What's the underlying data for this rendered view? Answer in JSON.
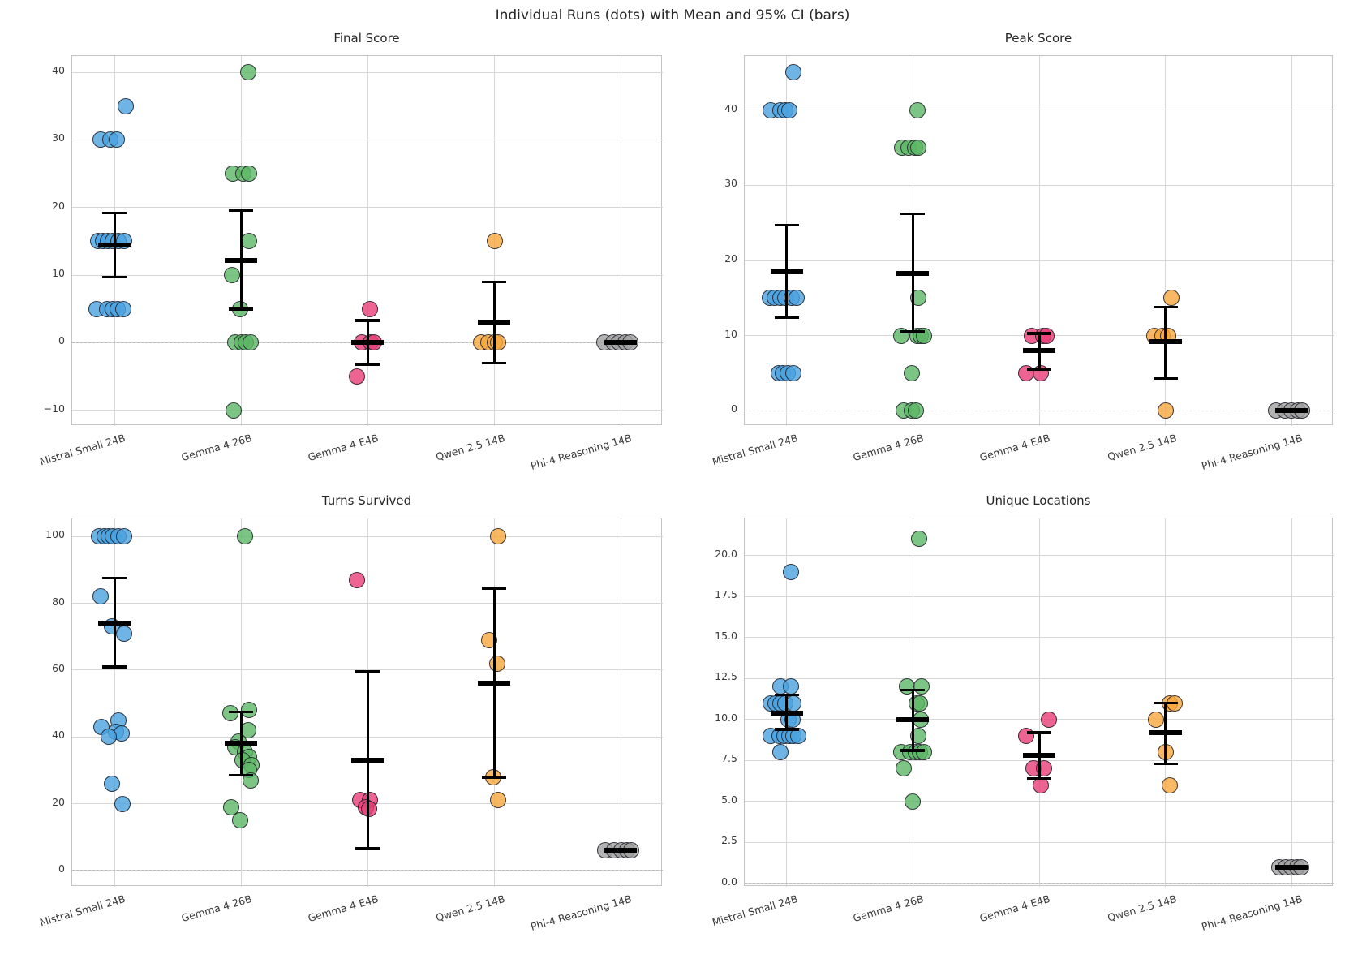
{
  "chart_data": {
    "type": "scatter",
    "suptitle": "Individual Runs (dots) with Mean and 95% CI (bars)",
    "categories": [
      "Mistral Small 24B",
      "Gemma 4 26B",
      "Gemma 4 E4B",
      "Qwen 2.5 14B",
      "Phi-4 Reasoning 14B"
    ],
    "palette": [
      "#4aa2e0",
      "#5cb765",
      "#e83d77",
      "#f7a63d",
      "#a0a0a0"
    ],
    "grid": true,
    "legend": "none",
    "subplots": [
      {
        "title": "Final Score",
        "ylim": [
          -12.3,
          42.4
        ],
        "yticks": [
          -10,
          0,
          10,
          20,
          30,
          40
        ],
        "ytick_labels": [
          "−10",
          "0",
          "10",
          "20",
          "30",
          "40"
        ],
        "zero_line": 0,
        "groups": [
          {
            "category": "Mistral Small 24B",
            "mean": 14.4,
            "ci": [
              9.7,
              19.2
            ],
            "points": [
              [
                35,
                0.09
              ],
              [
                30,
                -0.11
              ],
              [
                30,
                -0.03
              ],
              [
                30,
                0.02
              ],
              [
                15,
                -0.13
              ],
              [
                15,
                -0.09
              ],
              [
                15,
                -0.05
              ],
              [
                15,
                -0.01
              ],
              [
                15,
                0.035
              ],
              [
                15,
                0.08
              ],
              [
                5,
                -0.14
              ],
              [
                5,
                -0.055
              ],
              [
                5,
                -0.015
              ],
              [
                5,
                0.025
              ],
              [
                5,
                0.07
              ]
            ]
          },
          {
            "category": "Gemma 4 26B",
            "mean": 12.2,
            "ci": [
              5.0,
              19.6
            ],
            "points": [
              [
                40,
                0.06
              ],
              [
                25,
                -0.065
              ],
              [
                25,
                0.02
              ],
              [
                25,
                0.065
              ],
              [
                15,
                0.065
              ],
              [
                10,
                -0.07
              ],
              [
                5,
                -0.005
              ],
              [
                0,
                -0.045
              ],
              [
                0,
                0.005
              ],
              [
                0,
                0.04
              ],
              [
                0,
                0.075
              ],
              [
                -10,
                -0.06
              ]
            ]
          },
          {
            "category": "Gemma 4 E4B",
            "mean": 0.0,
            "ci": [
              -3.2,
              3.3
            ],
            "points": [
              [
                5,
                0.02
              ],
              [
                0,
                -0.045
              ],
              [
                0,
                0.025
              ],
              [
                0,
                0.05
              ],
              [
                -5,
                -0.085
              ]
            ]
          },
          {
            "category": "Qwen 2.5 14B",
            "mean": 3.0,
            "ci": [
              -3.0,
              9.0
            ],
            "points": [
              [
                15,
                0.005
              ],
              [
                0,
                -0.1
              ],
              [
                0,
                -0.045
              ],
              [
                0,
                0.005
              ],
              [
                0,
                0.03
              ]
            ]
          },
          {
            "category": "Phi-4 Reasoning 14B",
            "mean": 0.0,
            "ci": [
              0.0,
              0.0
            ],
            "points": [
              [
                0,
                -0.13
              ],
              [
                0,
                -0.06
              ],
              [
                0,
                -0.01
              ],
              [
                0,
                0.04
              ],
              [
                0,
                0.075
              ]
            ]
          }
        ]
      },
      {
        "title": "Peak Score",
        "ylim": [
          -2.0,
          47.2
        ],
        "yticks": [
          0,
          10,
          20,
          30,
          40
        ],
        "ytick_labels": [
          "0",
          "10",
          "20",
          "30",
          "40"
        ],
        "zero_line": 0,
        "groups": [
          {
            "category": "Mistral Small 24B",
            "mean": 18.5,
            "ci": [
              12.4,
              24.7
            ],
            "points": [
              [
                45,
                0.055
              ],
              [
                40,
                -0.125
              ],
              [
                40,
                -0.05
              ],
              [
                40,
                -0.015
              ],
              [
                40,
                0.02
              ],
              [
                15,
                -0.135
              ],
              [
                15,
                -0.095
              ],
              [
                15,
                -0.05
              ],
              [
                15,
                -0.01
              ],
              [
                15,
                0.04
              ],
              [
                15,
                0.075
              ],
              [
                5,
                -0.065
              ],
              [
                5,
                -0.03
              ],
              [
                5,
                0.01
              ],
              [
                5,
                0.055
              ]
            ]
          },
          {
            "category": "Gemma 4 26B",
            "mean": 18.3,
            "ci": [
              10.5,
              26.2
            ],
            "points": [
              [
                40,
                0.035
              ],
              [
                35,
                -0.085
              ],
              [
                35,
                -0.035
              ],
              [
                35,
                0.015
              ],
              [
                35,
                0.045
              ],
              [
                15,
                0.04
              ],
              [
                10,
                -0.095
              ],
              [
                10,
                0.035
              ],
              [
                10,
                0.06
              ],
              [
                10,
                0.085
              ],
              [
                5,
                -0.01
              ],
              [
                0,
                -0.075
              ],
              [
                0,
                -0.01
              ],
              [
                0,
                0.025
              ]
            ]
          },
          {
            "category": "Gemma 4 E4B",
            "mean": 8.0,
            "ci": [
              5.5,
              10.3
            ],
            "points": [
              [
                10,
                -0.06
              ],
              [
                10,
                0.03
              ],
              [
                10,
                0.055
              ],
              [
                5,
                -0.1
              ],
              [
                5,
                0.015
              ]
            ]
          },
          {
            "category": "Qwen 2.5 14B",
            "mean": 9.2,
            "ci": [
              4.3,
              13.8
            ],
            "points": [
              [
                15,
                0.05
              ],
              [
                10,
                -0.085
              ],
              [
                10,
                -0.025
              ],
              [
                10,
                0.025
              ],
              [
                0,
                0.005
              ]
            ]
          },
          {
            "category": "Phi-4 Reasoning 14B",
            "mean": 0.0,
            "ci": [
              0.0,
              0.0
            ],
            "points": [
              [
                0,
                -0.12
              ],
              [
                0,
                -0.05
              ],
              [
                0,
                0.0
              ],
              [
                0,
                0.05
              ],
              [
                0,
                0.08
              ]
            ]
          }
        ]
      },
      {
        "title": "Turns Survived",
        "ylim": [
          -4.9,
          105.4
        ],
        "yticks": [
          0,
          20,
          40,
          60,
          80,
          100
        ],
        "ytick_labels": [
          "0",
          "20",
          "40",
          "60",
          "80",
          "100"
        ],
        "zero_line": 0,
        "groups": [
          {
            "category": "Mistral Small 24B",
            "mean": 74.0,
            "ci": [
              61.0,
              87.5
            ],
            "points": [
              [
                100,
                -0.125
              ],
              [
                100,
                -0.08
              ],
              [
                100,
                -0.045
              ],
              [
                100,
                -0.01
              ],
              [
                100,
                0.03
              ],
              [
                100,
                0.075
              ],
              [
                82,
                -0.11
              ],
              [
                73,
                -0.02
              ],
              [
                71,
                0.075
              ],
              [
                45,
                0.035
              ],
              [
                43,
                -0.1
              ],
              [
                41.5,
                0.01
              ],
              [
                41,
                0.055
              ],
              [
                40,
                -0.045
              ],
              [
                26,
                -0.02
              ],
              [
                20,
                0.065
              ]
            ]
          },
          {
            "category": "Gemma 4 26B",
            "mean": 38.0,
            "ci": [
              28.5,
              47.5
            ],
            "points": [
              [
                100,
                0.035
              ],
              [
                48,
                0.065
              ],
              [
                47,
                -0.085
              ],
              [
                42,
                0.055
              ],
              [
                38.5,
                -0.02
              ],
              [
                37,
                -0.045
              ],
              [
                35.5,
                0.035
              ],
              [
                34,
                0.065
              ],
              [
                33,
                0.01
              ],
              [
                31.5,
                0.085
              ],
              [
                30,
                0.065
              ],
              [
                27,
                0.08
              ],
              [
                19,
                -0.075
              ],
              [
                15,
                -0.005
              ]
            ]
          },
          {
            "category": "Gemma 4 E4B",
            "mean": 33.0,
            "ci": [
              6.5,
              59.5
            ],
            "points": [
              [
                87,
                -0.085
              ],
              [
                21,
                -0.055
              ],
              [
                21,
                0.02
              ],
              [
                19,
                -0.015
              ],
              [
                18.5,
                0.015
              ]
            ]
          },
          {
            "category": "Qwen 2.5 14B",
            "mean": 56.0,
            "ci": [
              27.8,
              84.4
            ],
            "points": [
              [
                100,
                0.035
              ],
              [
                69,
                -0.04
              ],
              [
                62,
                0.025
              ],
              [
                28,
                -0.005
              ],
              [
                21,
                0.035
              ]
            ]
          },
          {
            "category": "Phi-4 Reasoning 14B",
            "mean": 6.0,
            "ci": [
              6.0,
              6.0
            ],
            "points": [
              [
                6,
                -0.12
              ],
              [
                6,
                -0.05
              ],
              [
                6,
                0.005
              ],
              [
                6,
                0.05
              ],
              [
                6,
                0.085
              ]
            ]
          }
        ]
      },
      {
        "title": "Unique Locations",
        "ylim": [
          -0.2,
          22.25
        ],
        "yticks": [
          0,
          2.5,
          5,
          7.5,
          10,
          12.5,
          15,
          17.5,
          20
        ],
        "ytick_labels": [
          "0.0",
          "2.5",
          "5.0",
          "7.5",
          "10.0",
          "12.5",
          "15.0",
          "17.5",
          "20.0"
        ],
        "zero_line": 0,
        "groups": [
          {
            "category": "Mistral Small 24B",
            "mean": 10.4,
            "ci": [
              9.4,
              11.5
            ],
            "points": [
              [
                19,
                0.035
              ],
              [
                12,
                -0.05
              ],
              [
                12,
                0.035
              ],
              [
                11,
                -0.13
              ],
              [
                11,
                -0.09
              ],
              [
                11,
                -0.05
              ],
              [
                11,
                -0.01
              ],
              [
                11,
                0.055
              ],
              [
                10,
                0.015
              ],
              [
                10,
                0.045
              ],
              [
                9,
                -0.13
              ],
              [
                9,
                -0.06
              ],
              [
                9,
                -0.02
              ],
              [
                9,
                0.02
              ],
              [
                9,
                0.055
              ],
              [
                9,
                0.09
              ],
              [
                8,
                -0.05
              ]
            ]
          },
          {
            "category": "Gemma 4 26B",
            "mean": 10.0,
            "ci": [
              8.1,
              11.8
            ],
            "points": [
              [
                21,
                0.05
              ],
              [
                12,
                -0.045
              ],
              [
                12,
                0.065
              ],
              [
                11,
                0.03
              ],
              [
                11,
                0.058
              ],
              [
                10,
                0.06
              ],
              [
                9,
                0.04
              ],
              [
                8,
                -0.095
              ],
              [
                8,
                -0.02
              ],
              [
                8,
                0.02
              ],
              [
                8,
                0.055
              ],
              [
                8,
                0.09
              ],
              [
                7,
                -0.075
              ],
              [
                5,
                0.0
              ]
            ]
          },
          {
            "category": "Gemma 4 E4B",
            "mean": 7.8,
            "ci": [
              6.4,
              9.2
            ],
            "points": [
              [
                10,
                0.075
              ],
              [
                9,
                -0.1
              ],
              [
                7,
                -0.045
              ],
              [
                7,
                0.04
              ],
              [
                6,
                0.01
              ]
            ]
          },
          {
            "category": "Qwen 2.5 14B",
            "mean": 9.2,
            "ci": [
              7.3,
              11.0
            ],
            "points": [
              [
                11,
                0.035
              ],
              [
                11,
                0.075
              ],
              [
                10,
                -0.075
              ],
              [
                8,
                0.0
              ],
              [
                6,
                0.035
              ]
            ]
          },
          {
            "category": "Phi-4 Reasoning 14B",
            "mean": 1.0,
            "ci": [
              1.0,
              1.0
            ],
            "points": [
              [
                1,
                -0.1
              ],
              [
                1,
                -0.045
              ],
              [
                1,
                0.0
              ],
              [
                1,
                0.045
              ],
              [
                1,
                0.075
              ]
            ]
          }
        ]
      }
    ]
  }
}
